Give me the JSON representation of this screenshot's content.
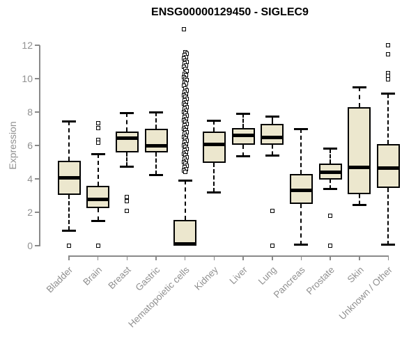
{
  "colors": {
    "box_fill": "#ECE7CE",
    "box_border": "#000000",
    "axis": "#898989",
    "tick_text": "#909090",
    "title_text": "#000000"
  },
  "chart_data": {
    "type": "boxplot",
    "title": "ENSG00000129450 - SIGLEC9",
    "ylabel": "Expression",
    "xlabel": "",
    "ylim": [
      0,
      13
    ],
    "yticks": [
      0,
      2,
      4,
      6,
      8,
      10,
      12
    ],
    "grid": false,
    "legend": "none",
    "categories": [
      "Bladder",
      "Brain",
      "Breast",
      "Gastric",
      "Hematopoietic cells",
      "Kidney",
      "Liver",
      "Lung",
      "Pancreas",
      "Prostate",
      "Skin",
      "Unknown / Other"
    ],
    "series": [
      {
        "name": "Bladder",
        "whisker_low": 0.9,
        "q1": 3.05,
        "median": 4.05,
        "q3": 5.1,
        "whisker_high": 7.45,
        "outliers": [
          0.0
        ]
      },
      {
        "name": "Brain",
        "whisker_low": 1.5,
        "q1": 2.25,
        "median": 2.78,
        "q3": 3.6,
        "whisker_high": 5.5,
        "outliers": [
          7.35,
          7.05,
          6.35,
          6.15,
          0.0
        ]
      },
      {
        "name": "Breast",
        "whisker_low": 4.73,
        "q1": 5.6,
        "median": 6.42,
        "q3": 6.85,
        "whisker_high": 7.95,
        "outliers": [
          2.9,
          2.65,
          2.1
        ]
      },
      {
        "name": "Gastric",
        "whisker_low": 4.25,
        "q1": 5.6,
        "median": 6.0,
        "q3": 7.0,
        "whisker_high": 8.0,
        "outliers": []
      },
      {
        "name": "Hematopoietic cells",
        "whisker_low": 0.0,
        "q1": 0.0,
        "median": 0.1,
        "q3": 1.55,
        "whisker_high": 3.9,
        "outliers": [
          12.95,
          11.6,
          11.5,
          11.4,
          11.3,
          11.2,
          11.1,
          11.0,
          10.9,
          10.8,
          10.7,
          10.6,
          10.45,
          10.3,
          10.2,
          10.1,
          10.0,
          9.9,
          9.8,
          9.7,
          9.6,
          9.4,
          9.3,
          9.2,
          9.1,
          9.0,
          8.9,
          8.8,
          8.7,
          8.6,
          8.5,
          8.4,
          8.3,
          8.2,
          8.1,
          8.0,
          7.9,
          7.8,
          7.7,
          7.6,
          7.5,
          7.4,
          7.3,
          7.2,
          7.1,
          7.0,
          6.9,
          6.8,
          6.7,
          6.6,
          6.5,
          6.4,
          6.3,
          6.2,
          6.1,
          6.0,
          5.9,
          5.8,
          5.7,
          5.6,
          5.5,
          5.4,
          5.3,
          5.2,
          5.1,
          5.0,
          4.9,
          4.8,
          4.7,
          4.6,
          4.5,
          4.4
        ],
        "jitter": true
      },
      {
        "name": "Kidney",
        "whisker_low": 3.2,
        "q1": 4.95,
        "median": 6.08,
        "q3": 6.85,
        "whisker_high": 7.5,
        "outliers": []
      },
      {
        "name": "Liver",
        "whisker_low": 5.35,
        "q1": 6.05,
        "median": 6.6,
        "q3": 7.05,
        "whisker_high": 7.9,
        "outliers": []
      },
      {
        "name": "Lung",
        "whisker_low": 5.4,
        "q1": 6.05,
        "median": 6.5,
        "q3": 7.3,
        "whisker_high": 7.75,
        "outliers": [
          2.1,
          0.0
        ]
      },
      {
        "name": "Pancreas",
        "whisker_low": 0.05,
        "q1": 2.5,
        "median": 3.3,
        "q3": 4.3,
        "whisker_high": 7.0,
        "outliers": []
      },
      {
        "name": "Prostate",
        "whisker_low": 3.4,
        "q1": 3.95,
        "median": 4.4,
        "q3": 4.9,
        "whisker_high": 5.8,
        "outliers": [
          1.8,
          0.0
        ]
      },
      {
        "name": "Skin",
        "whisker_low": 2.45,
        "q1": 3.1,
        "median": 4.7,
        "q3": 8.3,
        "whisker_high": 9.5,
        "outliers": []
      },
      {
        "name": "Unknown / Other",
        "whisker_low": 0.05,
        "q1": 3.45,
        "median": 4.65,
        "q3": 6.1,
        "whisker_high": 9.1,
        "outliers": [
          12.0,
          11.45,
          10.35,
          10.15,
          9.95
        ]
      }
    ]
  }
}
